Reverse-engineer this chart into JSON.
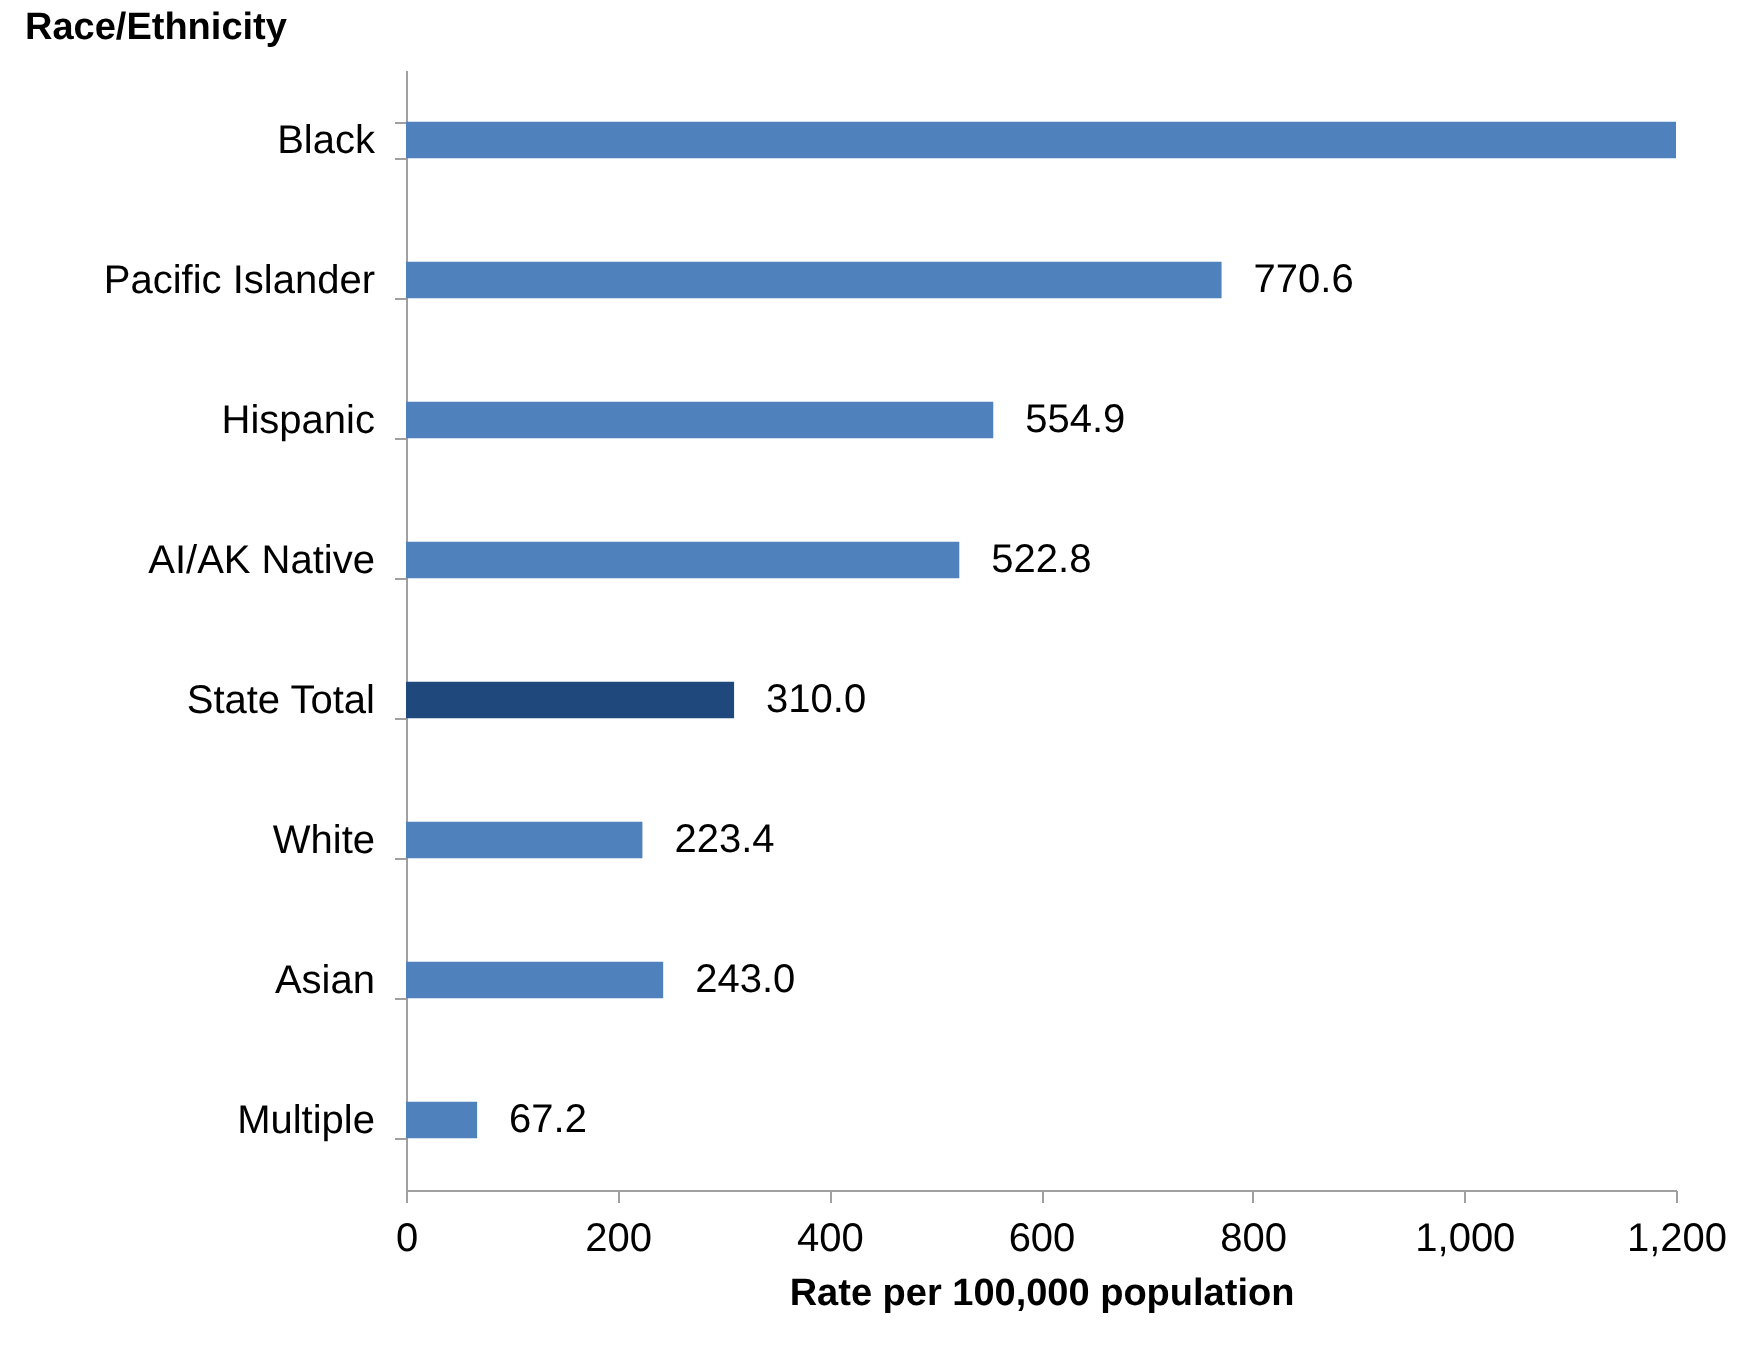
{
  "chart_data": {
    "type": "bar",
    "orientation": "horizontal",
    "ylabel": "Race/Ethnicity",
    "xlabel": "Rate per 100,000 population",
    "categories": [
      "Black",
      "Pacific Islander",
      "Hispanic",
      "AI/AK Native",
      "State Total",
      "White",
      "Asian",
      "Multiple"
    ],
    "values": [
      1200,
      770.6,
      554.9,
      522.8,
      310.0,
      223.4,
      243.0,
      67.2
    ],
    "colors": [
      "#4f81bd",
      "#4f81bd",
      "#4f81bd",
      "#4f81bd",
      "#1f497d",
      "#4f81bd",
      "#4f81bd",
      "#4f81bd"
    ],
    "value_labels": [
      null,
      "770.6",
      "554.9",
      "522.8",
      "310.0",
      "223.4",
      "243.0",
      "67.2"
    ],
    "xlim": [
      0,
      1200
    ],
    "xticks": [
      0,
      200,
      400,
      600,
      800,
      {
        "value": 1000,
        "label": "1,000"
      },
      {
        "value": 1200,
        "label": "1,200"
      }
    ],
    "grid": false
  }
}
